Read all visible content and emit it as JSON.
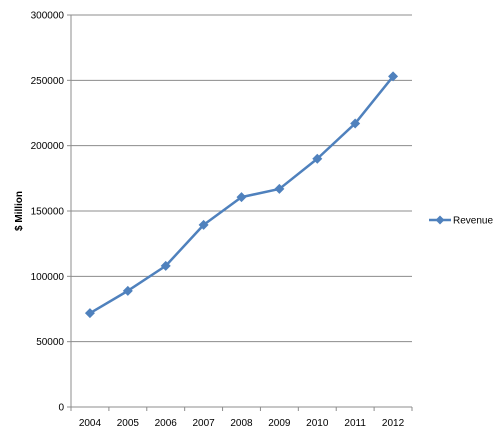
{
  "chart_data": {
    "type": "line",
    "title": "",
    "xlabel": "",
    "ylabel": "$ Million",
    "categories": [
      "2004",
      "2005",
      "2006",
      "2007",
      "2008",
      "2009",
      "2010",
      "2011",
      "2012"
    ],
    "series": [
      {
        "name": "Revenue",
        "values": [
          71800,
          88900,
          108000,
          139400,
          160600,
          166900,
          190000,
          217000,
          253000
        ],
        "color": "#4F81BD",
        "marker": "diamond"
      }
    ],
    "ylim": [
      0,
      300000
    ],
    "yticks": [
      "0",
      "50000",
      "100000",
      "150000",
      "200000",
      "250000",
      "300000"
    ],
    "grid": "horizontal",
    "legend_position": "right"
  }
}
